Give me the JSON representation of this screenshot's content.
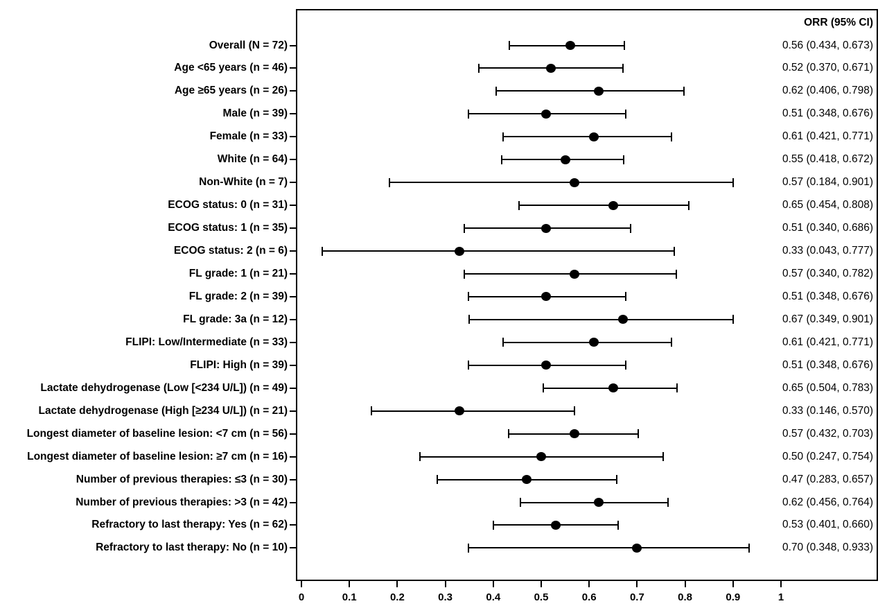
{
  "chart_data": {
    "type": "forest",
    "title": "",
    "xlabel": "",
    "value_column_header": "ORR (95% CI)",
    "xlim": [
      0,
      1.2
    ],
    "x_ticks": [
      0,
      0.1,
      0.2,
      0.3,
      0.4,
      0.5,
      0.6,
      0.7,
      0.8,
      0.9,
      1
    ],
    "x_tick_labels": [
      "0",
      "0.1",
      "0.2",
      "0.3",
      "0.4",
      "0.5",
      "0.6",
      "0.7",
      "0.8",
      "0.9",
      "1"
    ],
    "reference_line_x": 0.2,
    "grid": false,
    "rows": [
      {
        "label": "Overall (N = 72)",
        "orr": 0.56,
        "ci_low": 0.434,
        "ci_high": 0.673,
        "display": "0.56 (0.434, 0.673)"
      },
      {
        "label": "Age <65 years (n = 46)",
        "orr": 0.52,
        "ci_low": 0.37,
        "ci_high": 0.671,
        "display": "0.52 (0.370, 0.671)"
      },
      {
        "label": "Age ≥65 years (n = 26)",
        "orr": 0.62,
        "ci_low": 0.406,
        "ci_high": 0.798,
        "display": "0.62 (0.406, 0.798)"
      },
      {
        "label": "Male (n = 39)",
        "orr": 0.51,
        "ci_low": 0.348,
        "ci_high": 0.676,
        "display": "0.51 (0.348, 0.676)"
      },
      {
        "label": "Female (n = 33)",
        "orr": 0.61,
        "ci_low": 0.421,
        "ci_high": 0.771,
        "display": "0.61 (0.421, 0.771)"
      },
      {
        "label": "White (n = 64)",
        "orr": 0.55,
        "ci_low": 0.418,
        "ci_high": 0.672,
        "display": "0.55 (0.418, 0.672)"
      },
      {
        "label": "Non-White (n = 7)",
        "orr": 0.57,
        "ci_low": 0.184,
        "ci_high": 0.901,
        "display": "0.57 (0.184, 0.901)"
      },
      {
        "label": "ECOG status: 0 (n = 31)",
        "orr": 0.65,
        "ci_low": 0.454,
        "ci_high": 0.808,
        "display": "0.65 (0.454, 0.808)"
      },
      {
        "label": "ECOG status: 1 (n = 35)",
        "orr": 0.51,
        "ci_low": 0.34,
        "ci_high": 0.686,
        "display": "0.51 (0.340, 0.686)"
      },
      {
        "label": "ECOG status: 2 (n = 6)",
        "orr": 0.33,
        "ci_low": 0.043,
        "ci_high": 0.777,
        "display": "0.33 (0.043, 0.777)"
      },
      {
        "label": "FL grade: 1 (n = 21)",
        "orr": 0.57,
        "ci_low": 0.34,
        "ci_high": 0.782,
        "display": "0.57 (0.340, 0.782)"
      },
      {
        "label": "FL grade: 2 (n = 39)",
        "orr": 0.51,
        "ci_low": 0.348,
        "ci_high": 0.676,
        "display": "0.51 (0.348, 0.676)"
      },
      {
        "label": "FL grade: 3a (n = 12)",
        "orr": 0.67,
        "ci_low": 0.349,
        "ci_high": 0.901,
        "display": "0.67 (0.349, 0.901)"
      },
      {
        "label": "FLIPI: Low/Intermediate (n = 33)",
        "orr": 0.61,
        "ci_low": 0.421,
        "ci_high": 0.771,
        "display": "0.61 (0.421, 0.771)"
      },
      {
        "label": "FLIPI: High (n = 39)",
        "orr": 0.51,
        "ci_low": 0.348,
        "ci_high": 0.676,
        "display": "0.51 (0.348, 0.676)"
      },
      {
        "label": "Lactate dehydrogenase (Low [<234 U/L]) (n = 49)",
        "orr": 0.65,
        "ci_low": 0.504,
        "ci_high": 0.783,
        "display": "0.65 (0.504, 0.783)"
      },
      {
        "label": "Lactate dehydrogenase (High [≥234 U/L]) (n = 21)",
        "orr": 0.33,
        "ci_low": 0.146,
        "ci_high": 0.57,
        "display": "0.33 (0.146, 0.570)"
      },
      {
        "label": "Longest diameter of baseline lesion: <7 cm (n = 56)",
        "orr": 0.57,
        "ci_low": 0.432,
        "ci_high": 0.703,
        "display": "0.57 (0.432, 0.703)"
      },
      {
        "label": "Longest diameter of baseline lesion: ≥7 cm (n = 16)",
        "orr": 0.5,
        "ci_low": 0.247,
        "ci_high": 0.754,
        "display": "0.50 (0.247, 0.754)"
      },
      {
        "label": "Number of previous therapies: ≤3 (n = 30)",
        "orr": 0.47,
        "ci_low": 0.283,
        "ci_high": 0.657,
        "display": "0.47 (0.283, 0.657)"
      },
      {
        "label": "Number of previous therapies: >3 (n = 42)",
        "orr": 0.62,
        "ci_low": 0.456,
        "ci_high": 0.764,
        "display": "0.62 (0.456, 0.764)"
      },
      {
        "label": "Refractory to last therapy: Yes (n = 62)",
        "orr": 0.53,
        "ci_low": 0.401,
        "ci_high": 0.66,
        "display": "0.53 (0.401, 0.660)"
      },
      {
        "label": "Refractory to last therapy: No (n = 10)",
        "orr": 0.7,
        "ci_low": 0.348,
        "ci_high": 0.933,
        "display": "0.70 (0.348, 0.933)"
      }
    ],
    "colors": {
      "marker": "#000000",
      "line": "#000000",
      "text": "#000000",
      "background": "#ffffff"
    }
  }
}
